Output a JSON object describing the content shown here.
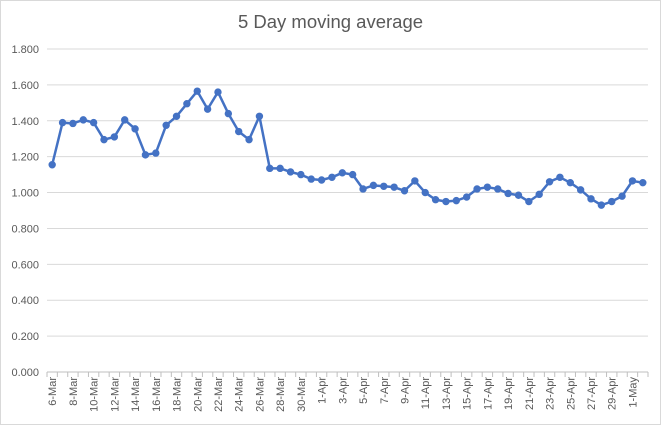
{
  "chart_data": {
    "type": "line",
    "title": "5 Day moving average",
    "xlabel": "",
    "ylabel": "",
    "ylim": [
      0,
      1.8
    ],
    "y_tick_labels": [
      "0.000",
      "0.200",
      "0.400",
      "0.600",
      "0.800",
      "1.000",
      "1.200",
      "1.400",
      "1.600",
      "1.800"
    ],
    "grid": "horizontal",
    "legend": "none",
    "x": [
      "6-Mar",
      "7-Mar",
      "8-Mar",
      "9-Mar",
      "10-Mar",
      "11-Mar",
      "12-Mar",
      "13-Mar",
      "14-Mar",
      "15-Mar",
      "16-Mar",
      "17-Mar",
      "18-Mar",
      "19-Mar",
      "20-Mar",
      "21-Mar",
      "22-Mar",
      "23-Mar",
      "24-Mar",
      "25-Mar",
      "26-Mar",
      "27-Mar",
      "28-Mar",
      "29-Mar",
      "30-Mar",
      "31-Mar",
      "1-Apr",
      "2-Apr",
      "3-Apr",
      "4-Apr",
      "5-Apr",
      "6-Apr",
      "7-Apr",
      "8-Apr",
      "9-Apr",
      "10-Apr",
      "11-Apr",
      "12-Apr",
      "13-Apr",
      "14-Apr",
      "15-Apr",
      "16-Apr",
      "17-Apr",
      "18-Apr",
      "19-Apr",
      "20-Apr",
      "21-Apr",
      "22-Apr",
      "23-Apr",
      "24-Apr",
      "25-Apr",
      "26-Apr",
      "27-Apr",
      "28-Apr",
      "29-Apr",
      "30-Apr",
      "1-May",
      "2-May"
    ],
    "x_tick_labels": [
      "6-Mar",
      "8-Mar",
      "10-Mar",
      "12-Mar",
      "14-Mar",
      "16-Mar",
      "18-Mar",
      "20-Mar",
      "22-Mar",
      "24-Mar",
      "26-Mar",
      "28-Mar",
      "30-Mar",
      "1-Apr",
      "3-Apr",
      "5-Apr",
      "7-Apr",
      "9-Apr",
      "11-Apr",
      "13-Apr",
      "15-Apr",
      "17-Apr",
      "19-Apr",
      "21-Apr",
      "23-Apr",
      "25-Apr",
      "27-Apr",
      "29-Apr",
      "1-May"
    ],
    "series": [
      {
        "color": "#4472c4",
        "values": [
          1.155,
          1.39,
          1.385,
          1.405,
          1.39,
          1.295,
          1.31,
          1.405,
          1.355,
          1.21,
          1.22,
          1.375,
          1.425,
          1.495,
          1.565,
          1.465,
          1.56,
          1.44,
          1.34,
          1.295,
          1.425,
          1.135,
          1.135,
          1.115,
          1.1,
          1.075,
          1.07,
          1.085,
          1.11,
          1.1,
          1.02,
          1.04,
          1.035,
          1.03,
          1.01,
          1.065,
          1.0,
          0.96,
          0.95,
          0.955,
          0.975,
          1.02,
          1.03,
          1.02,
          0.995,
          0.985,
          0.95,
          0.99,
          1.06,
          1.085,
          1.055,
          1.015,
          0.965,
          0.93,
          0.95,
          0.98,
          1.065,
          1.055
        ]
      }
    ]
  }
}
